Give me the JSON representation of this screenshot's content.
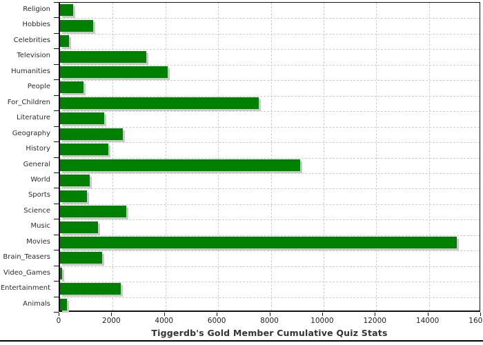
{
  "title": "Tiggerdb's Gold Member Cumulative Quiz Stats",
  "colors": {
    "bar": "#008000",
    "bar_shadow": "#c9c9c9",
    "gridline": "#cdcdd2",
    "axis": "#111111",
    "label_text": "#2b2b2b",
    "title_text": "#333333",
    "background": "#ffffff"
  },
  "chart_data": {
    "type": "bar",
    "orientation": "horizontal",
    "title": "Tiggerdb's Gold Member Cumulative Quiz Stats",
    "xlabel": "",
    "ylabel": "",
    "xlim": [
      0,
      16000
    ],
    "xticks": [
      0,
      2000,
      4000,
      6000,
      8000,
      10000,
      12000,
      14000,
      16000
    ],
    "grid": true,
    "legend": false,
    "categories": [
      "Religion",
      "Hobbies",
      "Celebrities",
      "Television",
      "Humanities",
      "People",
      "For_Children",
      "Literature",
      "Geography",
      "History",
      "General",
      "World",
      "Sports",
      "Science",
      "Music",
      "Movies",
      "Brain_Teasers",
      "Video_Games",
      "Entertainment",
      "Animals"
    ],
    "values": [
      500,
      1260,
      330,
      3270,
      4080,
      890,
      7530,
      1680,
      2370,
      1830,
      9120,
      1130,
      1020,
      2510,
      1440,
      15050,
      1600,
      90,
      2310,
      260
    ]
  }
}
